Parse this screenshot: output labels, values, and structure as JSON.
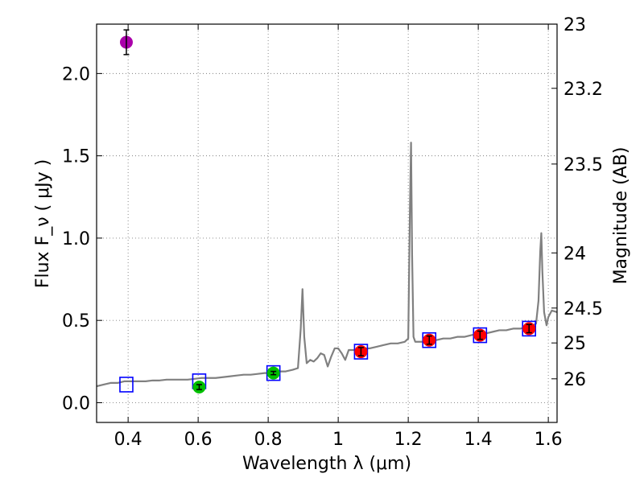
{
  "chart_data": {
    "type": "scatter",
    "title": "",
    "xlabel": "Wavelength  λ (μm)",
    "ylabel": "Flux  F_ν  ( μJy )",
    "ylabel_right": "Magnitude (AB)",
    "xlim": [
      0.31,
      1.625
    ],
    "ylim": [
      -0.12,
      2.3
    ],
    "grid": true,
    "x_ticks": [
      {
        "value": 0.4,
        "label": "0.4"
      },
      {
        "value": 0.6,
        "label": "0.6"
      },
      {
        "value": 0.8,
        "label": "0.8"
      },
      {
        "value": 1.0,
        "label": "1"
      },
      {
        "value": 1.2,
        "label": "1.2"
      },
      {
        "value": 1.4,
        "label": "1.4"
      },
      {
        "value": 1.6,
        "label": "1.6"
      }
    ],
    "y_ticks": [
      {
        "value": 0.0,
        "label": "0.0"
      },
      {
        "value": 0.5,
        "label": "0.5"
      },
      {
        "value": 1.0,
        "label": "1.0"
      },
      {
        "value": 1.5,
        "label": "1.5"
      },
      {
        "value": 2.0,
        "label": "2.0"
      }
    ],
    "right_ticks": [
      {
        "flux": 2.3,
        "label": "23"
      },
      {
        "flux": 1.91,
        "label": "23.2"
      },
      {
        "flux": 1.45,
        "label": "23.5"
      },
      {
        "flux": 0.91,
        "label": "24"
      },
      {
        "flux": 0.575,
        "label": "24.5"
      },
      {
        "flux": 0.363,
        "label": "25"
      },
      {
        "flux": 0.145,
        "label": "26"
      }
    ],
    "colors": {
      "spectrum": "#808080",
      "model_box": "#0000ff",
      "purple": "#aa00aa",
      "green": "#00c000",
      "red": "#ff0000",
      "errorbar": "#000000",
      "grid": "#7f7f7f"
    },
    "spectrum": {
      "x": [
        0.31,
        0.33,
        0.35,
        0.37,
        0.39,
        0.41,
        0.43,
        0.45,
        0.47,
        0.49,
        0.51,
        0.53,
        0.55,
        0.57,
        0.59,
        0.61,
        0.63,
        0.65,
        0.67,
        0.69,
        0.71,
        0.73,
        0.75,
        0.77,
        0.79,
        0.81,
        0.83,
        0.85,
        0.87,
        0.885,
        0.893,
        0.898,
        0.903,
        0.91,
        0.92,
        0.93,
        0.94,
        0.95,
        0.96,
        0.97,
        0.98,
        0.99,
        1.0,
        1.01,
        1.02,
        1.03,
        1.05,
        1.07,
        1.09,
        1.11,
        1.13,
        1.15,
        1.17,
        1.19,
        1.2,
        1.205,
        1.208,
        1.211,
        1.215,
        1.22,
        1.24,
        1.26,
        1.28,
        1.3,
        1.32,
        1.34,
        1.36,
        1.38,
        1.4,
        1.42,
        1.44,
        1.46,
        1.48,
        1.5,
        1.52,
        1.54,
        1.555,
        1.565,
        1.572,
        1.577,
        1.58,
        1.583,
        1.588,
        1.595,
        1.6,
        1.61,
        1.625
      ],
      "y": [
        0.1,
        0.11,
        0.12,
        0.12,
        0.13,
        0.13,
        0.13,
        0.13,
        0.135,
        0.135,
        0.14,
        0.14,
        0.14,
        0.14,
        0.145,
        0.15,
        0.15,
        0.15,
        0.155,
        0.16,
        0.165,
        0.17,
        0.17,
        0.175,
        0.18,
        0.18,
        0.19,
        0.19,
        0.2,
        0.21,
        0.45,
        0.69,
        0.4,
        0.24,
        0.26,
        0.25,
        0.27,
        0.3,
        0.29,
        0.22,
        0.28,
        0.33,
        0.33,
        0.3,
        0.26,
        0.32,
        0.32,
        0.33,
        0.33,
        0.34,
        0.35,
        0.36,
        0.36,
        0.37,
        0.39,
        1.2,
        1.58,
        0.9,
        0.4,
        0.37,
        0.37,
        0.38,
        0.38,
        0.39,
        0.39,
        0.4,
        0.4,
        0.41,
        0.42,
        0.42,
        0.43,
        0.44,
        0.44,
        0.45,
        0.45,
        0.46,
        0.47,
        0.48,
        0.62,
        0.92,
        1.03,
        0.8,
        0.55,
        0.47,
        0.52,
        0.56,
        0.55
      ]
    },
    "model_boxes": {
      "x": [
        0.395,
        0.603,
        0.815,
        1.065,
        1.26,
        1.405,
        1.545
      ],
      "y": [
        0.11,
        0.13,
        0.18,
        0.31,
        0.38,
        0.41,
        0.45
      ]
    },
    "observed": [
      {
        "x": 0.395,
        "y": 2.19,
        "err": 0.075,
        "color": "purple"
      },
      {
        "x": 0.603,
        "y": 0.095,
        "err": 0.015,
        "color": "green"
      },
      {
        "x": 0.815,
        "y": 0.18,
        "err": 0.01,
        "color": "green"
      },
      {
        "x": 1.065,
        "y": 0.31,
        "err": 0.025,
        "color": "red"
      },
      {
        "x": 1.26,
        "y": 0.38,
        "err": 0.025,
        "color": "red"
      },
      {
        "x": 1.405,
        "y": 0.41,
        "err": 0.025,
        "color": "red"
      },
      {
        "x": 1.545,
        "y": 0.45,
        "err": 0.025,
        "color": "red"
      }
    ]
  }
}
